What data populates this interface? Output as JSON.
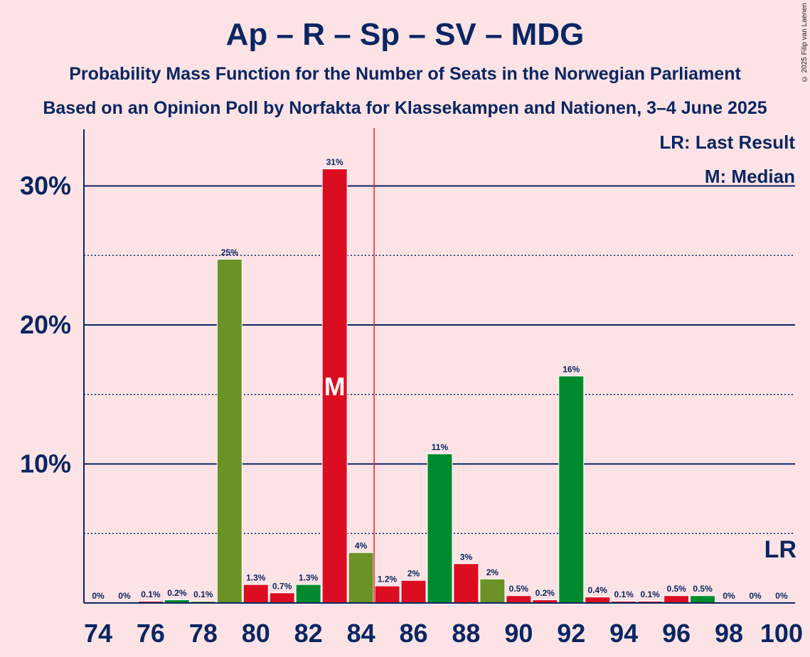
{
  "title": "Ap – R – Sp – SV – MDG",
  "subtitle1": "Probability Mass Function for the Number of Seats in the Norwegian Parliament",
  "subtitle2": "Based on an Opinion Poll by Norfakta for Klassekampen and Nationen, 3–4 June 2025",
  "copyright": "© 2025 Filip van Laenen",
  "legend": {
    "last_result": "LR: Last Result",
    "median": "M: Median"
  },
  "markers": {
    "median_label": "M",
    "median_seat": 83,
    "last_result_label": "LR",
    "last_result_seat": 100,
    "majority_line_seat": 84.5
  },
  "colors": {
    "background": "#FDE3E5",
    "text": "#0A2663",
    "majority_line": "#E8262A",
    "red": "#DC0C21",
    "green": "#008A2E",
    "olive": "#6A9227"
  },
  "chart_data": {
    "type": "bar",
    "ylim": [
      0,
      34
    ],
    "yticks": [
      {
        "value": 10,
        "label": "10%"
      },
      {
        "value": 20,
        "label": "20%"
      },
      {
        "value": 30,
        "label": "30%"
      }
    ],
    "dotted_gridlines": [
      5,
      15,
      25
    ],
    "xticks": [
      "74",
      "76",
      "78",
      "80",
      "82",
      "84",
      "86",
      "88",
      "90",
      "92",
      "94",
      "96",
      "98",
      "100"
    ],
    "bars": [
      {
        "seat": 74,
        "value": 0,
        "label": "0%",
        "color": "red"
      },
      {
        "seat": 75,
        "value": 0,
        "label": "0%",
        "color": "red"
      },
      {
        "seat": 76,
        "value": 0.1,
        "label": "0.1%",
        "color": "red"
      },
      {
        "seat": 77,
        "value": 0.2,
        "label": "0.2%",
        "color": "green"
      },
      {
        "seat": 78,
        "value": 0.1,
        "label": "0.1%",
        "color": "olive"
      },
      {
        "seat": 79,
        "value": 24.7,
        "label": "25%",
        "color": "olive"
      },
      {
        "seat": 80,
        "value": 1.3,
        "label": "1.3%",
        "color": "red"
      },
      {
        "seat": 81,
        "value": 0.7,
        "label": "0.7%",
        "color": "red"
      },
      {
        "seat": 82,
        "value": 1.3,
        "label": "1.3%",
        "color": "green"
      },
      {
        "seat": 83,
        "value": 31.2,
        "label": "31%",
        "color": "red"
      },
      {
        "seat": 84,
        "value": 3.6,
        "label": "4%",
        "color": "olive"
      },
      {
        "seat": 85,
        "value": 1.2,
        "label": "1.2%",
        "color": "red"
      },
      {
        "seat": 86,
        "value": 1.6,
        "label": "2%",
        "color": "red"
      },
      {
        "seat": 87,
        "value": 10.7,
        "label": "11%",
        "color": "green"
      },
      {
        "seat": 88,
        "value": 2.8,
        "label": "3%",
        "color": "red"
      },
      {
        "seat": 89,
        "value": 1.7,
        "label": "2%",
        "color": "olive"
      },
      {
        "seat": 90,
        "value": 0.5,
        "label": "0.5%",
        "color": "red"
      },
      {
        "seat": 91,
        "value": 0.2,
        "label": "0.2%",
        "color": "red"
      },
      {
        "seat": 92,
        "value": 16.3,
        "label": "16%",
        "color": "green"
      },
      {
        "seat": 93,
        "value": 0.4,
        "label": "0.4%",
        "color": "red"
      },
      {
        "seat": 94,
        "value": 0.1,
        "label": "0.1%",
        "color": "red"
      },
      {
        "seat": 95,
        "value": 0.1,
        "label": "0.1%",
        "color": "red"
      },
      {
        "seat": 96,
        "value": 0.5,
        "label": "0.5%",
        "color": "red"
      },
      {
        "seat": 97,
        "value": 0.5,
        "label": "0.5%",
        "color": "green"
      },
      {
        "seat": 98,
        "value": 0,
        "label": "0%",
        "color": "red"
      },
      {
        "seat": 99,
        "value": 0,
        "label": "0%",
        "color": "red"
      },
      {
        "seat": 100,
        "value": 0,
        "label": "0%",
        "color": "red"
      }
    ]
  }
}
